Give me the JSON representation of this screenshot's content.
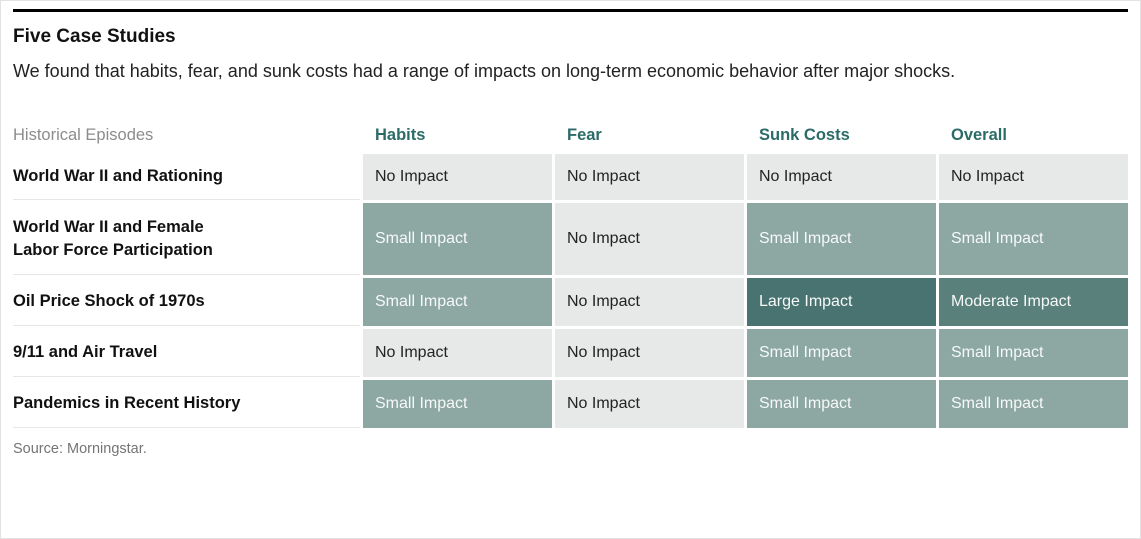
{
  "header": {
    "title": "Five Case Studies",
    "subtitle": "We found that habits, fear, and sunk costs had a range of impacts on long-term economic behavior after major shocks."
  },
  "chart_data": {
    "type": "table",
    "row_header": "Historical Episodes",
    "columns": [
      "Habits",
      "Fear",
      "Sunk Costs",
      "Overall"
    ],
    "rows": [
      {
        "label": "World War II and Rationing",
        "values": [
          "No Impact",
          "No Impact",
          "No Impact",
          "No Impact"
        ],
        "levels": [
          "none",
          "none",
          "none",
          "none"
        ]
      },
      {
        "label": "World War II and Female\nLabor Force Participation",
        "values": [
          "Small Impact",
          "No Impact",
          "Small Impact",
          "Small Impact"
        ],
        "levels": [
          "small",
          "none",
          "small",
          "small"
        ]
      },
      {
        "label": "Oil Price Shock of 1970s",
        "values": [
          "Small Impact",
          "No Impact",
          "Large Impact",
          "Moderate Impact"
        ],
        "levels": [
          "small",
          "none",
          "large",
          "moderate"
        ]
      },
      {
        "label": "9/11 and Air Travel",
        "values": [
          "No Impact",
          "No Impact",
          "Small Impact",
          "Small Impact"
        ],
        "levels": [
          "none",
          "none",
          "small",
          "small"
        ]
      },
      {
        "label": "Pandemics in Recent History",
        "values": [
          "Small Impact",
          "No Impact",
          "Small Impact",
          "Small Impact"
        ],
        "levels": [
          "small",
          "none",
          "small",
          "small"
        ]
      }
    ],
    "impact_scale": [
      "No Impact",
      "Small Impact",
      "Moderate Impact",
      "Large Impact"
    ]
  },
  "footer": {
    "source": "Source: Morningstar."
  },
  "colors": {
    "impact_none_bg": "#e6e9e8",
    "impact_small_bg": "#8da7a2",
    "impact_moderate_bg": "#5a807b",
    "impact_large_bg": "#497370",
    "column_header_text": "#2b6c68",
    "top_rule": "#000000"
  }
}
